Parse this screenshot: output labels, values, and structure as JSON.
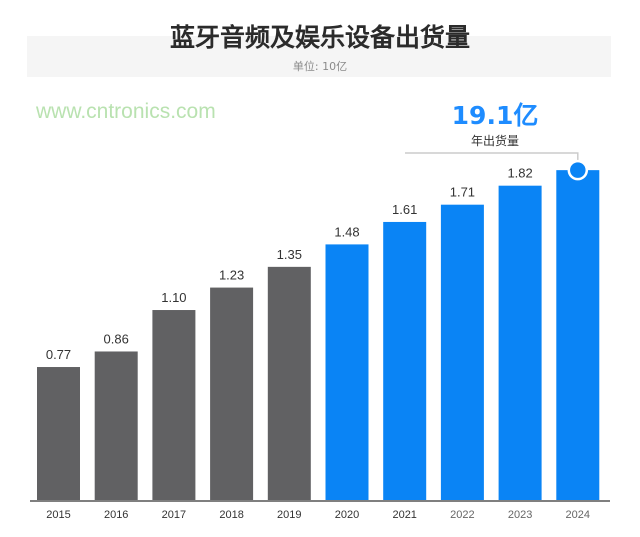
{
  "chart_data": {
    "type": "bar",
    "title": "蓝牙音频及娱乐设备出货量",
    "subtitle": "单位: 10亿",
    "categories": [
      "2015",
      "2016",
      "2017",
      "2018",
      "2019",
      "2020",
      "2021",
      "2022",
      "2023",
      "2024"
    ],
    "values": [
      0.77,
      0.86,
      1.1,
      1.23,
      1.35,
      1.48,
      1.61,
      1.71,
      1.82,
      1.91
    ],
    "data_labels": [
      "0.77",
      "0.86",
      "1.10",
      "1.23",
      "1.35",
      "1.48",
      "1.61",
      "1.71",
      "1.82",
      ""
    ],
    "ylim": [
      0,
      2.0
    ],
    "grid": false,
    "colors": {
      "historical": "#616163",
      "forecast": "#0a84f5",
      "axis": "#555555"
    },
    "historical_count": 5,
    "annotation": {
      "value": "19.1亿",
      "label": "年出货量",
      "category": "2024"
    }
  },
  "watermark": "www.cntronics.com"
}
